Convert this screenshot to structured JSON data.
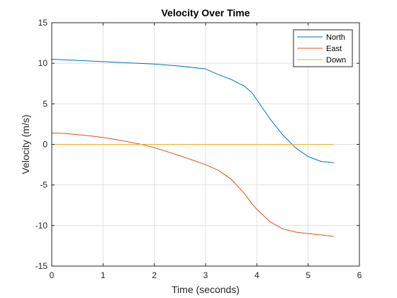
{
  "chart_data": {
    "type": "line",
    "title": "Velocity Over Time",
    "xlabel": "Time (seconds)",
    "ylabel": "Velocity (m/s)",
    "xlim": [
      0,
      6
    ],
    "ylim": [
      -15,
      15
    ],
    "xticks": [
      0,
      1,
      2,
      3,
      4,
      5,
      6
    ],
    "yticks": [
      -15,
      -10,
      -5,
      0,
      5,
      10,
      15
    ],
    "xtick_labels": [
      "0",
      "1",
      "2",
      "3",
      "4",
      "5",
      "6"
    ],
    "ytick_labels": [
      "-15",
      "-10",
      "-5",
      "0",
      "5",
      "10",
      "15"
    ],
    "grid": true,
    "legend_position": "top-right",
    "series": [
      {
        "name": "North",
        "color": "#0072BD",
        "x": [
          0,
          0.5,
          1,
          1.5,
          2,
          2.5,
          3,
          3.25,
          3.5,
          3.75,
          3.9,
          4.0,
          4.25,
          4.5,
          4.75,
          5.0,
          5.25,
          5.5
        ],
        "y": [
          10.5,
          10.35,
          10.2,
          10.05,
          9.9,
          9.65,
          9.3,
          8.6,
          8.0,
          7.2,
          6.4,
          5.5,
          3.2,
          1.2,
          -0.4,
          -1.5,
          -2.1,
          -2.25
        ]
      },
      {
        "name": "East",
        "color": "#D95319",
        "x": [
          0,
          0.25,
          0.5,
          0.75,
          1,
          1.25,
          1.5,
          1.75,
          2,
          2.5,
          3,
          3.25,
          3.5,
          3.75,
          3.9,
          4.0,
          4.25,
          4.5,
          4.75,
          5.0,
          5.25,
          5.5
        ],
        "y": [
          1.4,
          1.35,
          1.2,
          1.05,
          0.85,
          0.6,
          0.3,
          0.0,
          -0.4,
          -1.4,
          -2.5,
          -3.2,
          -4.3,
          -6.0,
          -7.3,
          -8.0,
          -9.5,
          -10.4,
          -10.8,
          -11.0,
          -11.15,
          -11.35
        ]
      },
      {
        "name": "Down",
        "color": "#EDB120",
        "x": [
          0,
          5.5
        ],
        "y": [
          0,
          0
        ]
      }
    ]
  }
}
